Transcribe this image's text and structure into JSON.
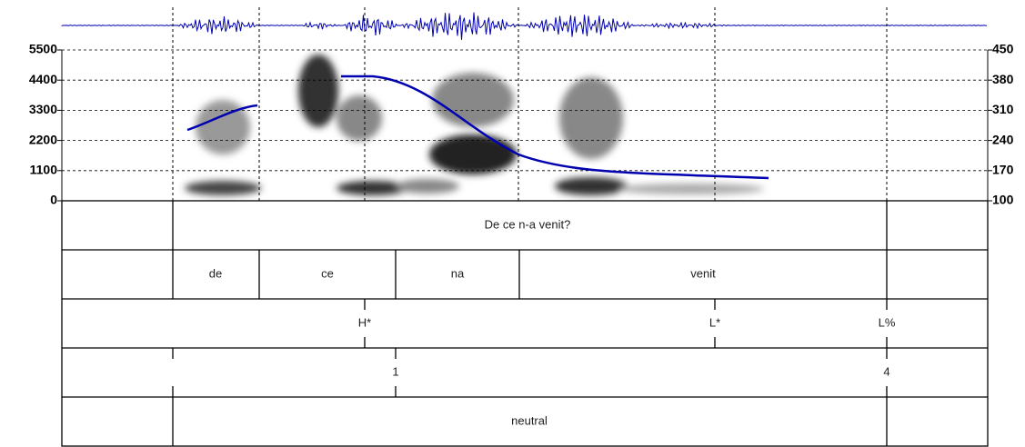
{
  "spectrogram": {
    "ylim": [
      0,
      5500
    ],
    "yticks": [
      0,
      1100,
      2200,
      3300,
      4400,
      5500
    ],
    "y2lim": [
      100,
      450
    ],
    "y2ticks": [
      100,
      170,
      240,
      310,
      380,
      450
    ]
  },
  "tiers": [
    {
      "labels": [
        "De ce n-a venit?"
      ]
    },
    {
      "labels": [
        "de",
        "ce",
        "na",
        "venit"
      ]
    },
    {
      "labels": [
        "H*",
        "L*",
        "L%"
      ]
    },
    {
      "labels": [
        "1",
        "4"
      ]
    },
    {
      "labels": [
        "neutral"
      ]
    }
  ]
}
